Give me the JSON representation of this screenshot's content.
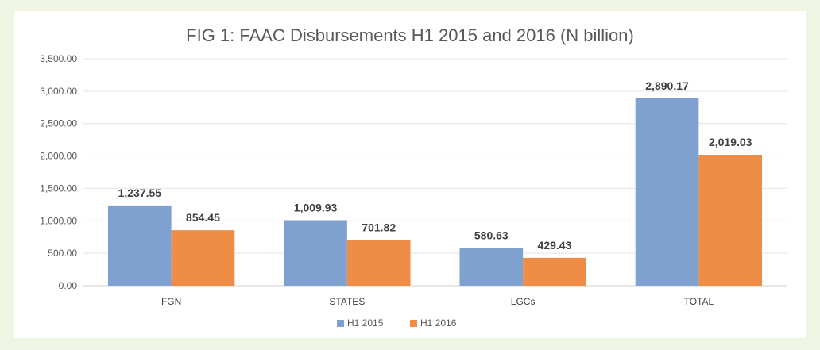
{
  "chart_data": {
    "type": "bar",
    "title": "FIG 1: FAAC Disbursements H1 2015 and 2016 (N billion)",
    "xlabel": "",
    "ylabel": "",
    "categories": [
      "FGN",
      "STATES",
      "LGCs",
      "TOTAL"
    ],
    "series": [
      {
        "name": "H1 2015",
        "color": "#7fa1cf",
        "values": [
          1237.55,
          1009.93,
          580.63,
          2890.17
        ],
        "labels": [
          "1,237.55",
          "1,009.93",
          "580.63",
          "2,890.17"
        ]
      },
      {
        "name": "H1 2016",
        "color": "#ef8c45",
        "values": [
          854.45,
          701.82,
          429.43,
          2019.03
        ],
        "labels": [
          "854.45",
          "701.82",
          "429.43",
          "2,019.03"
        ]
      }
    ],
    "ylim": [
      0,
      3500
    ],
    "yticks": [
      0,
      500,
      1000,
      1500,
      2000,
      2500,
      3000,
      3500
    ],
    "ytick_labels": [
      "0.00",
      "500.00",
      "1,000.00",
      "1,500.00",
      "2,000.00",
      "2,500.00",
      "3,000.00",
      "3,500.00"
    ],
    "grid": true,
    "legend_position": "bottom"
  },
  "colors": {
    "page_background": "#eef5e3",
    "panel_background": "#ffffff"
  }
}
